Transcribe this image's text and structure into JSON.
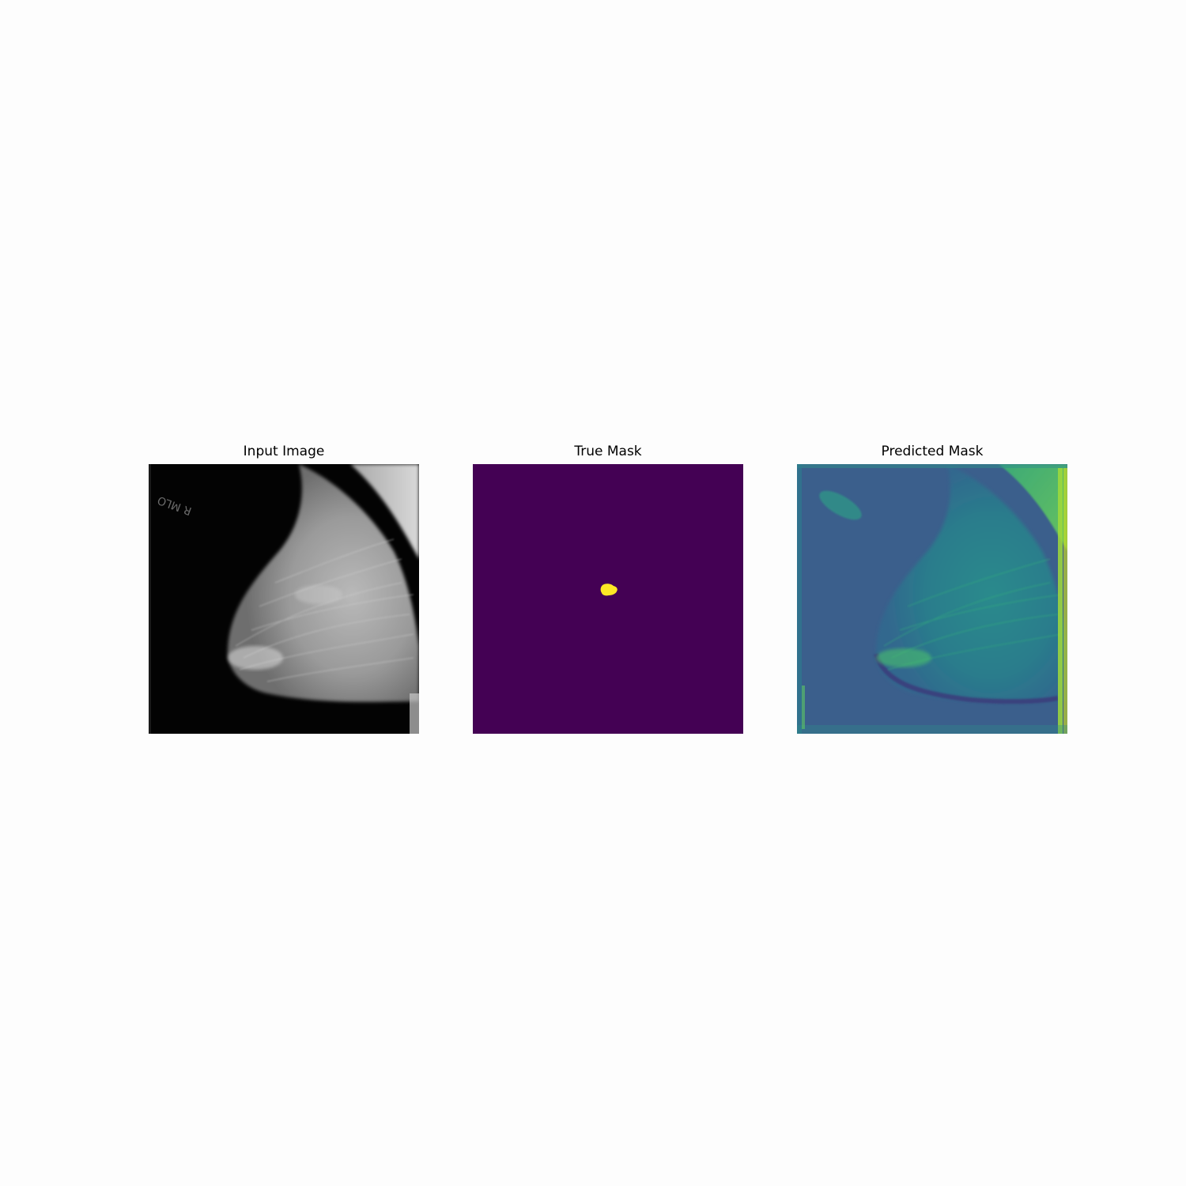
{
  "figure": {
    "panels": [
      {
        "id": "input",
        "title": "Input Image",
        "content": "grayscale mammogram",
        "overlay_text": "R MLO"
      },
      {
        "id": "true",
        "title": "True Mask",
        "content": "binary segmentation mask",
        "colors": {
          "background": "#440154",
          "foreground": "#fde725"
        }
      },
      {
        "id": "pred",
        "title": "Predicted Mask",
        "content": "continuous prediction heatmap",
        "colormap": "viridis",
        "colors": {
          "base": "#3b5f8c",
          "tissue": "#2d8a8c",
          "high": "#a8db34",
          "low": "#3a2f78"
        }
      }
    ]
  }
}
